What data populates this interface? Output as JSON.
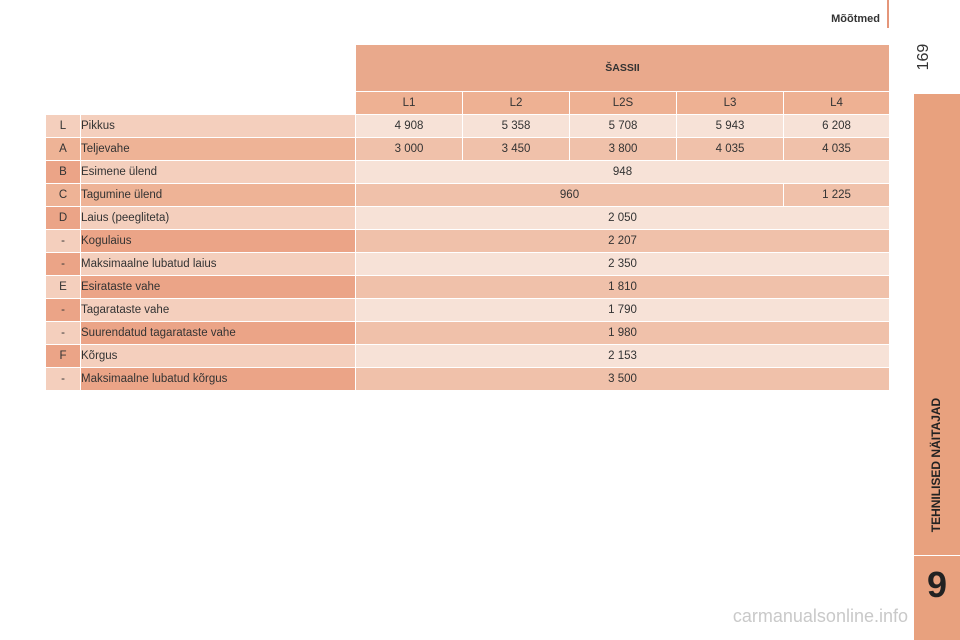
{
  "header": {
    "section_title": "Mõõtmed",
    "page_number": "169"
  },
  "sidebar": {
    "chapter_label": "TEHNILISED NÄITAJAD",
    "chapter_number": "9"
  },
  "watermark": "carmanualsonline.info",
  "table": {
    "group_header": "ŠASSII",
    "variants": [
      "L1",
      "L2",
      "L2S",
      "L3",
      "L4"
    ],
    "rows": [
      {
        "code": "L",
        "label": "Pikkus",
        "values": [
          "4 908",
          "5 358",
          "5 708",
          "5 943",
          "6 208"
        ]
      },
      {
        "code": "A",
        "label": "Teljevahe",
        "values": [
          "3 000",
          "3 450",
          "3 800",
          "4 035",
          "4 035"
        ]
      },
      {
        "code": "B",
        "label": "Esimene ülend",
        "values": [
          "948"
        ]
      },
      {
        "code": "C",
        "label": "Tagumine ülend",
        "values": [
          "960",
          "1 225"
        ]
      },
      {
        "code": "D",
        "label": "Laius (peegliteta)",
        "values": [
          "2 050"
        ]
      },
      {
        "code": "-",
        "label": "Kogulaius",
        "values": [
          "2 207"
        ]
      },
      {
        "code": "-",
        "label": "Maksimaalne lubatud laius",
        "values": [
          "2 350"
        ]
      },
      {
        "code": "E",
        "label": "Esirataste vahe",
        "values": [
          "1 810"
        ]
      },
      {
        "code": "-",
        "label": "Tagarataste vahe",
        "values": [
          "1 790"
        ]
      },
      {
        "code": "-",
        "label": "Suurendatud tagarataste vahe",
        "values": [
          "1 980"
        ]
      },
      {
        "code": "F",
        "label": "Kõrgus",
        "values": [
          "2 153"
        ]
      },
      {
        "code": "-",
        "label": "Maksimaalne lubatud kõrgus",
        "values": [
          "3 500"
        ]
      }
    ]
  },
  "colors": {
    "accent": "#e8a17e",
    "header_fill": "#e9a98c",
    "row_light": "#f7e2d7",
    "row_mid": "#f0c1aa"
  }
}
